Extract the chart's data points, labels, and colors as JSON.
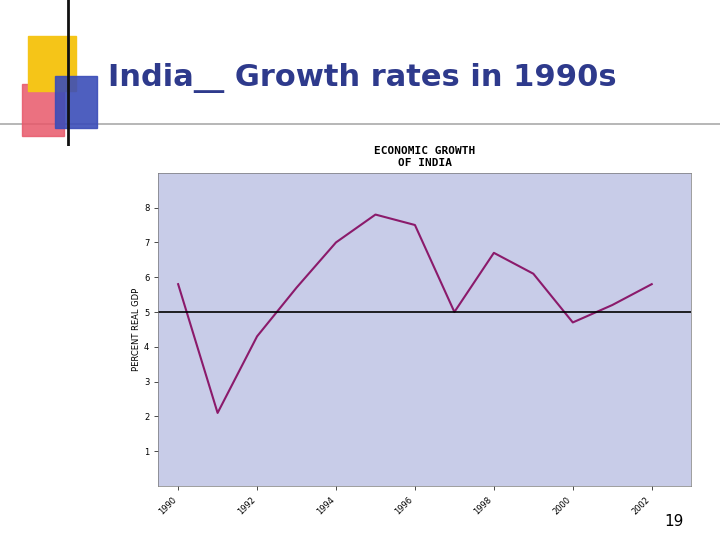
{
  "title": "India__ Growth rates in 1990s",
  "chart_title_line1": "ECONOMIC GROWTH",
  "chart_title_line2": "OF INDIA",
  "ylabel": "PERCENT REAL GDP",
  "bg_color": "#c8cce8",
  "slide_bg": "#ffffff",
  "line_color": "#8b1a6b",
  "hline_color": "#000000",
  "hline_y": 5.0,
  "years": [
    1990,
    1991,
    1992,
    1993,
    1994,
    1995,
    1996,
    1997,
    1998,
    1999,
    2000,
    2001,
    2002
  ],
  "values": [
    5.8,
    2.1,
    4.3,
    5.7,
    7.0,
    7.8,
    7.5,
    5.0,
    6.7,
    6.1,
    4.7,
    5.2,
    5.8
  ],
  "xtick_years": [
    1990,
    1992,
    1994,
    1996,
    1998,
    2000,
    2002
  ],
  "ylim": [
    0,
    9
  ],
  "yticks": [
    1,
    2,
    3,
    4,
    5,
    6,
    7,
    8
  ],
  "page_number": "19",
  "title_color": "#2e3a8c",
  "title_fontsize": 22,
  "chart_title_fontsize": 8,
  "axis_label_fontsize": 6,
  "ylabel_fontsize": 6
}
